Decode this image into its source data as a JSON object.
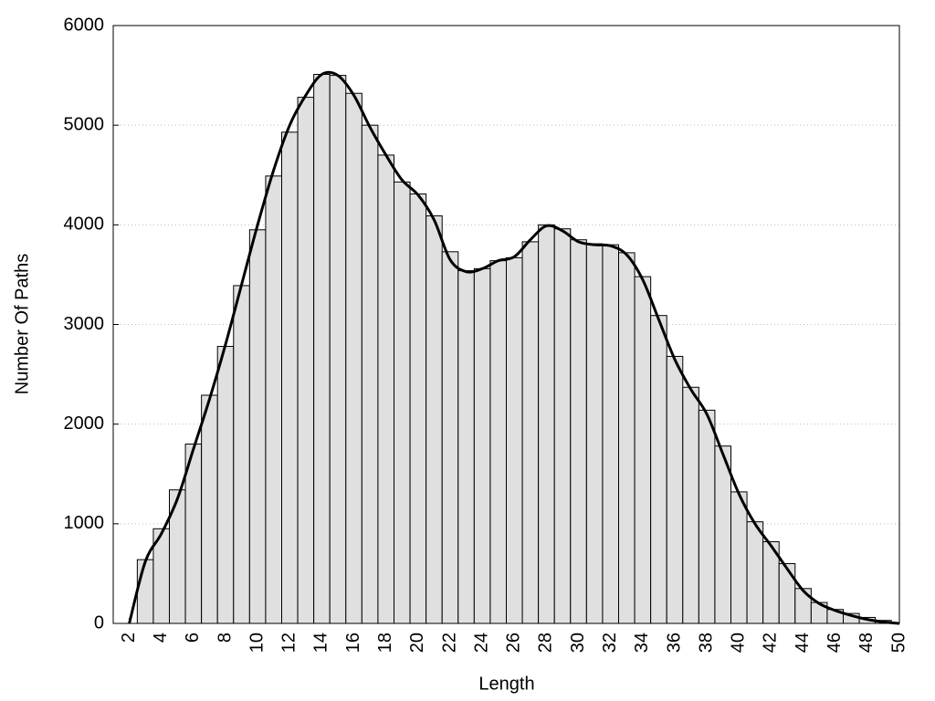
{
  "chart_data": {
    "type": "histogram",
    "xlabel": "Length",
    "ylabel": "Number Of Paths",
    "bins": [
      2.5,
      3.5,
      4.5,
      5.5,
      6.5,
      7.5,
      8.5,
      9.5,
      10.5,
      11.5,
      12.5,
      13.5,
      14.5,
      15.5,
      16.5,
      17.5,
      18.5,
      19.5,
      20.5,
      21.5,
      22.5,
      23.5,
      24.5,
      25.5,
      26.5,
      27.5,
      28.5,
      29.5,
      30.5,
      31.5,
      32.5,
      33.5,
      34.5,
      35.5,
      36.5,
      37.5,
      38.5,
      39.5,
      40.5,
      41.5,
      42.5,
      43.5,
      44.5,
      45.5,
      46.5,
      47.5,
      48.5,
      49.5
    ],
    "values": [
      640,
      950,
      1340,
      1800,
      2290,
      2780,
      3390,
      3950,
      4490,
      4930,
      5280,
      5510,
      5500,
      5320,
      5000,
      4700,
      4430,
      4310,
      4090,
      3730,
      3540,
      3560,
      3640,
      3670,
      3830,
      4000,
      3960,
      3850,
      3810,
      3800,
      3720,
      3480,
      3090,
      2680,
      2370,
      2140,
      1780,
      1320,
      1020,
      820,
      600,
      350,
      210,
      140,
      100,
      60,
      30
    ],
    "color": "#e0e0e0",
    "line": {
      "color": "#000000",
      "x": [
        2,
        3,
        4,
        5,
        6,
        7,
        8,
        9,
        10,
        11,
        12,
        13,
        14,
        15,
        16,
        17,
        18,
        19,
        20,
        21,
        22,
        23,
        24,
        25,
        26,
        27,
        28,
        29,
        30,
        31,
        32,
        33,
        34,
        35,
        36,
        37,
        38,
        39,
        40,
        41,
        42,
        43,
        44,
        45,
        46,
        47,
        48,
        49,
        50
      ],
      "values": [
        0,
        620,
        900,
        1250,
        1750,
        2250,
        2800,
        3400,
        4000,
        4550,
        5000,
        5300,
        5510,
        5500,
        5300,
        4980,
        4700,
        4450,
        4300,
        4050,
        3650,
        3530,
        3560,
        3640,
        3680,
        3850,
        3990,
        3940,
        3830,
        3800,
        3790,
        3700,
        3450,
        3050,
        2650,
        2350,
        2100,
        1700,
        1300,
        1000,
        780,
        550,
        330,
        200,
        130,
        80,
        40,
        15,
        0
      ]
    },
    "xlim": [
      1,
      50
    ],
    "ylim": [
      0,
      6000
    ],
    "xticks": [
      2,
      4,
      6,
      8,
      10,
      12,
      14,
      16,
      18,
      20,
      22,
      24,
      26,
      28,
      30,
      32,
      34,
      36,
      38,
      40,
      42,
      44,
      46,
      48,
      50
    ],
    "yticks": [
      0,
      1000,
      2000,
      3000,
      4000,
      5000,
      6000
    ],
    "grid": true
  }
}
